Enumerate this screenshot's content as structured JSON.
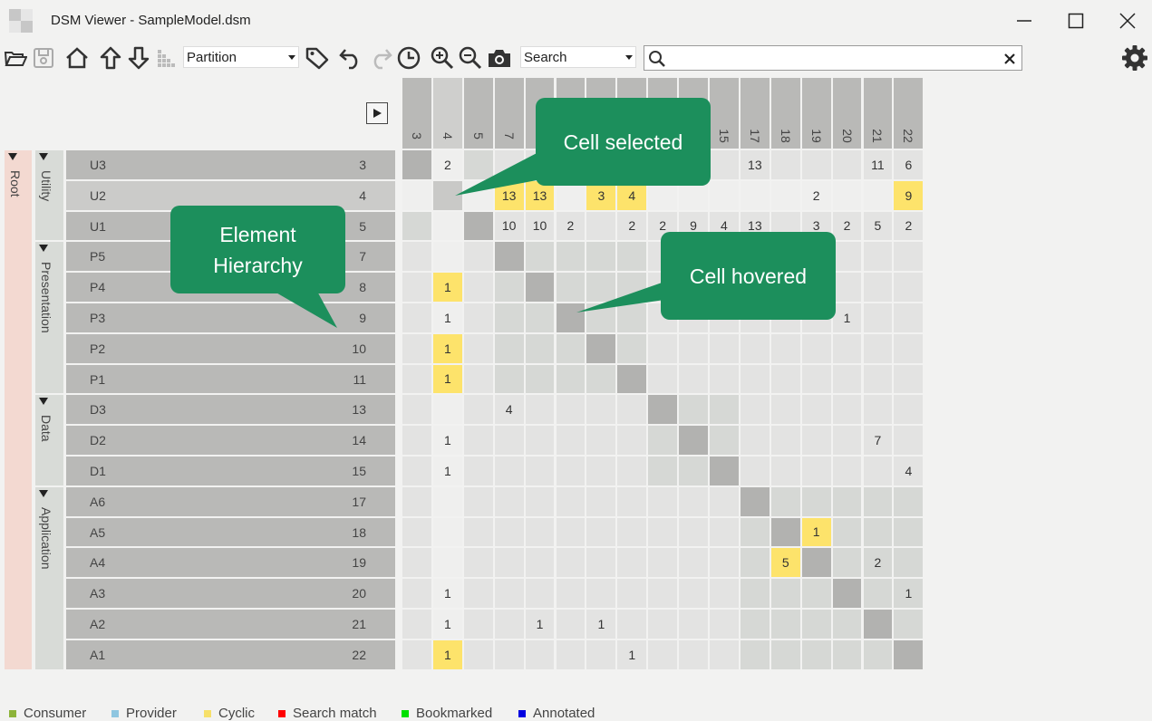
{
  "window": {
    "title": "DSM Viewer - SampleModel.dsm"
  },
  "toolbar": {
    "partition_combo": "Partition",
    "search_combo": "Search",
    "search_placeholder": ""
  },
  "hierarchy": {
    "root": "Root",
    "groups": [
      {
        "name": "Utility",
        "elements": [
          {
            "name": "U3",
            "order": "3"
          },
          {
            "name": "U2",
            "order": "4"
          },
          {
            "name": "U1",
            "order": "5"
          }
        ]
      },
      {
        "name": "Presentation",
        "elements": [
          {
            "name": "P5",
            "order": "7"
          },
          {
            "name": "P4",
            "order": "8"
          },
          {
            "name": "P3",
            "order": "9"
          },
          {
            "name": "P2",
            "order": "10"
          },
          {
            "name": "P1",
            "order": "11"
          }
        ]
      },
      {
        "name": "Data",
        "elements": [
          {
            "name": "D3",
            "order": "13"
          },
          {
            "name": "D2",
            "order": "14"
          },
          {
            "name": "D1",
            "order": "15"
          }
        ]
      },
      {
        "name": "Application",
        "elements": [
          {
            "name": "A6",
            "order": "17"
          },
          {
            "name": "A5",
            "order": "18"
          },
          {
            "name": "A4",
            "order": "19"
          },
          {
            "name": "A3",
            "order": "20"
          },
          {
            "name": "A2",
            "order": "21"
          },
          {
            "name": "A1",
            "order": "22"
          }
        ]
      }
    ]
  },
  "matrix": {
    "columns": [
      "3",
      "4",
      "5",
      "7",
      "8",
      "9",
      "10",
      "11",
      "13",
      "14",
      "15",
      "17",
      "18",
      "19",
      "20",
      "21",
      "22"
    ],
    "cells": [
      [
        "",
        "2",
        "",
        "",
        "",
        "",
        "",
        "",
        "",
        "",
        "",
        "13",
        "",
        "",
        "",
        "11",
        "6"
      ],
      [
        "",
        "",
        "",
        "13",
        "13",
        "",
        "3",
        "4",
        "",
        "",
        "",
        "",
        "",
        "2",
        "",
        "",
        "9"
      ],
      [
        "",
        "",
        "",
        "10",
        "10",
        "2",
        "",
        "2",
        "2",
        "9",
        "4",
        "13",
        "",
        "3",
        "2",
        "5",
        "2"
      ],
      [
        "",
        "",
        "",
        "",
        "",
        "",
        "",
        "",
        "",
        "",
        "",
        "",
        "",
        "",
        "",
        "",
        ""
      ],
      [
        "",
        "1",
        "",
        "",
        "",
        "",
        "",
        "",
        "",
        "",
        "",
        "",
        "",
        "",
        "",
        "",
        ""
      ],
      [
        "",
        "1",
        "",
        "",
        "",
        "",
        "",
        "",
        "",
        "",
        "",
        "",
        "",
        "",
        "1",
        "",
        ""
      ],
      [
        "",
        "1",
        "",
        "",
        "",
        "",
        "",
        "",
        "",
        "",
        "",
        "",
        "",
        "",
        "",
        "",
        ""
      ],
      [
        "",
        "1",
        "",
        "",
        "",
        "",
        "",
        "",
        "",
        "",
        "",
        "",
        "",
        "",
        "",
        "",
        ""
      ],
      [
        "",
        "",
        "",
        "4",
        "",
        "",
        "",
        "",
        "",
        "",
        "",
        "",
        "",
        "",
        "",
        "",
        ""
      ],
      [
        "",
        "1",
        "",
        "",
        "",
        "",
        "",
        "",
        "",
        "",
        "",
        "",
        "",
        "",
        "",
        "7",
        ""
      ],
      [
        "",
        "1",
        "",
        "",
        "",
        "",
        "",
        "",
        "",
        "",
        "",
        "",
        "",
        "",
        "",
        "",
        "4"
      ],
      [
        "",
        "",
        "",
        "",
        "",
        "",
        "",
        "",
        "",
        "",
        "",
        "",
        "",
        "",
        "",
        "",
        ""
      ],
      [
        "",
        "",
        "",
        "",
        "",
        "",
        "",
        "",
        "",
        "",
        "",
        "",
        "",
        "1",
        "",
        "",
        ""
      ],
      [
        "",
        "",
        "",
        "",
        "",
        "",
        "",
        "",
        "",
        "",
        "",
        "",
        "5",
        "",
        "",
        "2",
        ""
      ],
      [
        "",
        "1",
        "",
        "",
        "",
        "",
        "",
        "",
        "",
        "",
        "",
        "",
        "",
        "",
        "",
        "",
        "1"
      ],
      [
        "",
        "1",
        "",
        "",
        "1",
        "",
        "1",
        "",
        "",
        "",
        "",
        "",
        "",
        "",
        "",
        "",
        ""
      ],
      [
        "",
        "1",
        "",
        "",
        "",
        "",
        "",
        "1",
        "",
        "",
        "",
        "",
        "",
        "",
        "",
        "",
        ""
      ]
    ],
    "cyclic": [
      [
        1,
        4
      ],
      [
        1,
        3
      ],
      [
        1,
        6
      ],
      [
        1,
        7
      ],
      [
        1,
        16
      ],
      [
        4,
        1
      ],
      [
        6,
        1
      ],
      [
        7,
        1
      ],
      [
        12,
        13
      ],
      [
        13,
        12
      ],
      [
        16,
        1
      ]
    ],
    "selected_cell": [
      1,
      1
    ],
    "hovered_cell": [
      5,
      5
    ]
  },
  "callouts": {
    "cell_selected": "Cell selected",
    "element_hierarchy": "Element Hierarchy",
    "cell_hovered": "Cell hovered"
  },
  "legend": [
    {
      "label": "Consumer",
      "color": "#8db33a"
    },
    {
      "label": "Provider",
      "color": "#8fc6e0"
    },
    {
      "label": "Cyclic",
      "color": "#f7e06a"
    },
    {
      "label": "Search match",
      "color": "#ff0000"
    },
    {
      "label": "Bookmarked",
      "color": "#00e000"
    },
    {
      "label": "Annotated",
      "color": "#0000e0"
    }
  ],
  "colors": {
    "diagonal": "#b2b2b0",
    "cell_light": "#e3e3e2",
    "cell_block": "#d6d8d5",
    "cyclic": "#fde36b",
    "callout": "#1c8f5c"
  }
}
